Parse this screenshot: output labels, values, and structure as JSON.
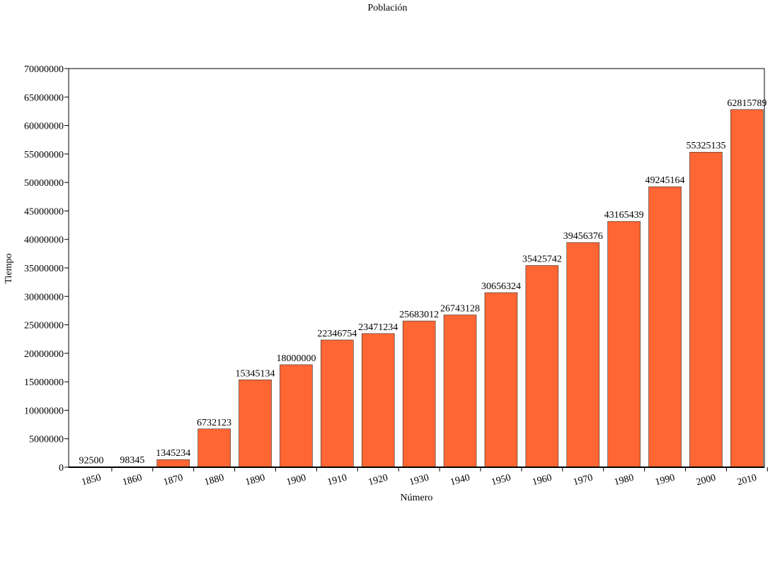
{
  "chart_data": {
    "type": "bar",
    "title": "Población",
    "xlabel": "Número",
    "ylabel": "Tiempo",
    "categories": [
      "1850",
      "1860",
      "1870",
      "1880",
      "1890",
      "1900",
      "1910",
      "1920",
      "1930",
      "1940",
      "1950",
      "1960",
      "1970",
      "1980",
      "1990",
      "2000",
      "2010"
    ],
    "values": [
      92500,
      98345,
      1345234,
      6732123,
      15345134,
      18000000,
      22346754,
      23471234,
      25683012,
      26743128,
      30656324,
      35425742,
      39456376,
      43165439,
      49245164,
      55325135,
      62815789
    ],
    "ylim": [
      0,
      70000000
    ],
    "yticks": [
      0,
      5000000,
      10000000,
      15000000,
      20000000,
      25000000,
      30000000,
      35000000,
      40000000,
      45000000,
      50000000,
      55000000,
      60000000,
      65000000,
      70000000
    ],
    "bar_color": "#ff6633",
    "grid": false,
    "legend": "none"
  }
}
